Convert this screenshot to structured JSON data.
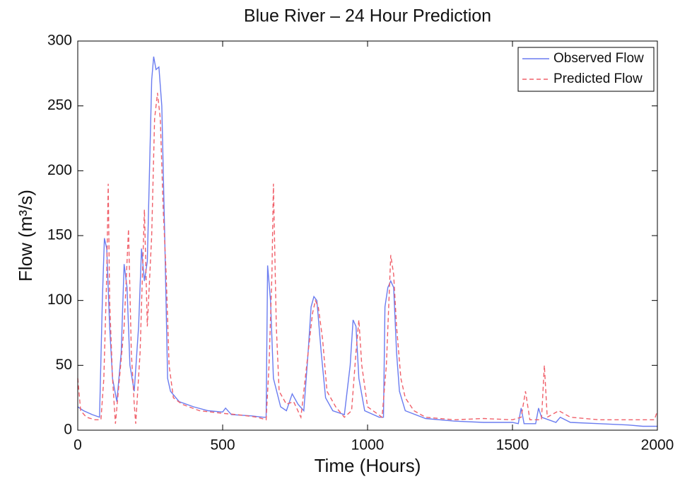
{
  "chart_data": {
    "type": "line",
    "title": "Blue River – 24 Hour Prediction",
    "x_label": "Time (Hours)",
    "y_label": "Flow (m³/s)",
    "xlim": [
      0,
      2000
    ],
    "xticks": [
      0,
      500,
      1000,
      1500,
      2000
    ],
    "ylim": [
      0,
      300
    ],
    "yticks": [
      0,
      50,
      100,
      150,
      200,
      250,
      300
    ],
    "grid": false,
    "legend": "upper right",
    "series": [
      {
        "name": "Observed Flow",
        "color": "#6a7cf0",
        "dash": false,
        "x": [
          0,
          20,
          50,
          75,
          85,
          92,
          100,
          110,
          120,
          135,
          150,
          160,
          170,
          180,
          195,
          210,
          220,
          230,
          240,
          255,
          262,
          270,
          280,
          290,
          300,
          310,
          320,
          350,
          400,
          450,
          500,
          510,
          530,
          600,
          640,
          650,
          655,
          665,
          675,
          700,
          720,
          740,
          760,
          780,
          795,
          805,
          815,
          825,
          840,
          855,
          880,
          920,
          940,
          950,
          960,
          970,
          990,
          1040,
          1055,
          1060,
          1070,
          1080,
          1090,
          1100,
          1110,
          1130,
          1200,
          1300,
          1400,
          1500,
          1520,
          1530,
          1540,
          1580,
          1590,
          1600,
          1650,
          1665,
          1700,
          1800,
          1900,
          1950,
          2000
        ],
        "values": [
          18,
          15,
          12,
          10,
          100,
          148,
          140,
          80,
          40,
          22,
          60,
          128,
          110,
          50,
          30,
          80,
          140,
          115,
          130,
          270,
          288,
          278,
          280,
          250,
          150,
          40,
          30,
          22,
          18,
          15,
          14,
          17,
          12,
          11,
          10,
          10,
          127,
          100,
          40,
          18,
          15,
          28,
          20,
          15,
          60,
          95,
          103,
          100,
          60,
          25,
          15,
          12,
          50,
          85,
          80,
          40,
          15,
          10,
          10,
          95,
          110,
          115,
          110,
          60,
          30,
          15,
          9,
          7,
          6,
          6,
          5,
          17,
          5,
          5,
          17,
          10,
          6,
          10,
          6,
          5,
          4,
          3,
          3
        ]
      },
      {
        "name": "Predicted Flow",
        "color": "#f0606a",
        "dash": true,
        "x": [
          0,
          10,
          30,
          60,
          80,
          90,
          100,
          105,
          110,
          120,
          130,
          140,
          160,
          175,
          185,
          195,
          200,
          215,
          230,
          240,
          255,
          265,
          275,
          285,
          295,
          305,
          315,
          330,
          360,
          420,
          500,
          550,
          620,
          650,
          660,
          670,
          675,
          685,
          695,
          720,
          745,
          770,
          810,
          820,
          830,
          845,
          860,
          890,
          920,
          945,
          960,
          970,
          980,
          1000,
          1050,
          1065,
          1080,
          1090,
          1100,
          1115,
          1130,
          1160,
          1200,
          1300,
          1400,
          1500,
          1530,
          1545,
          1560,
          1600,
          1610,
          1620,
          1660,
          1700,
          1800,
          1900,
          1990,
          2000
        ],
        "values": [
          40,
          15,
          10,
          8,
          8,
          40,
          120,
          190,
          100,
          40,
          5,
          30,
          80,
          155,
          60,
          20,
          5,
          60,
          170,
          80,
          150,
          240,
          260,
          240,
          170,
          120,
          50,
          25,
          20,
          15,
          13,
          12,
          10,
          8,
          50,
          120,
          190,
          80,
          30,
          20,
          22,
          10,
          90,
          100,
          95,
          70,
          30,
          18,
          10,
          15,
          60,
          85,
          50,
          18,
          10,
          50,
          135,
          120,
          80,
          40,
          25,
          15,
          10,
          8,
          9,
          8,
          10,
          30,
          8,
          8,
          50,
          10,
          15,
          10,
          8,
          8,
          8,
          15
        ]
      }
    ]
  }
}
